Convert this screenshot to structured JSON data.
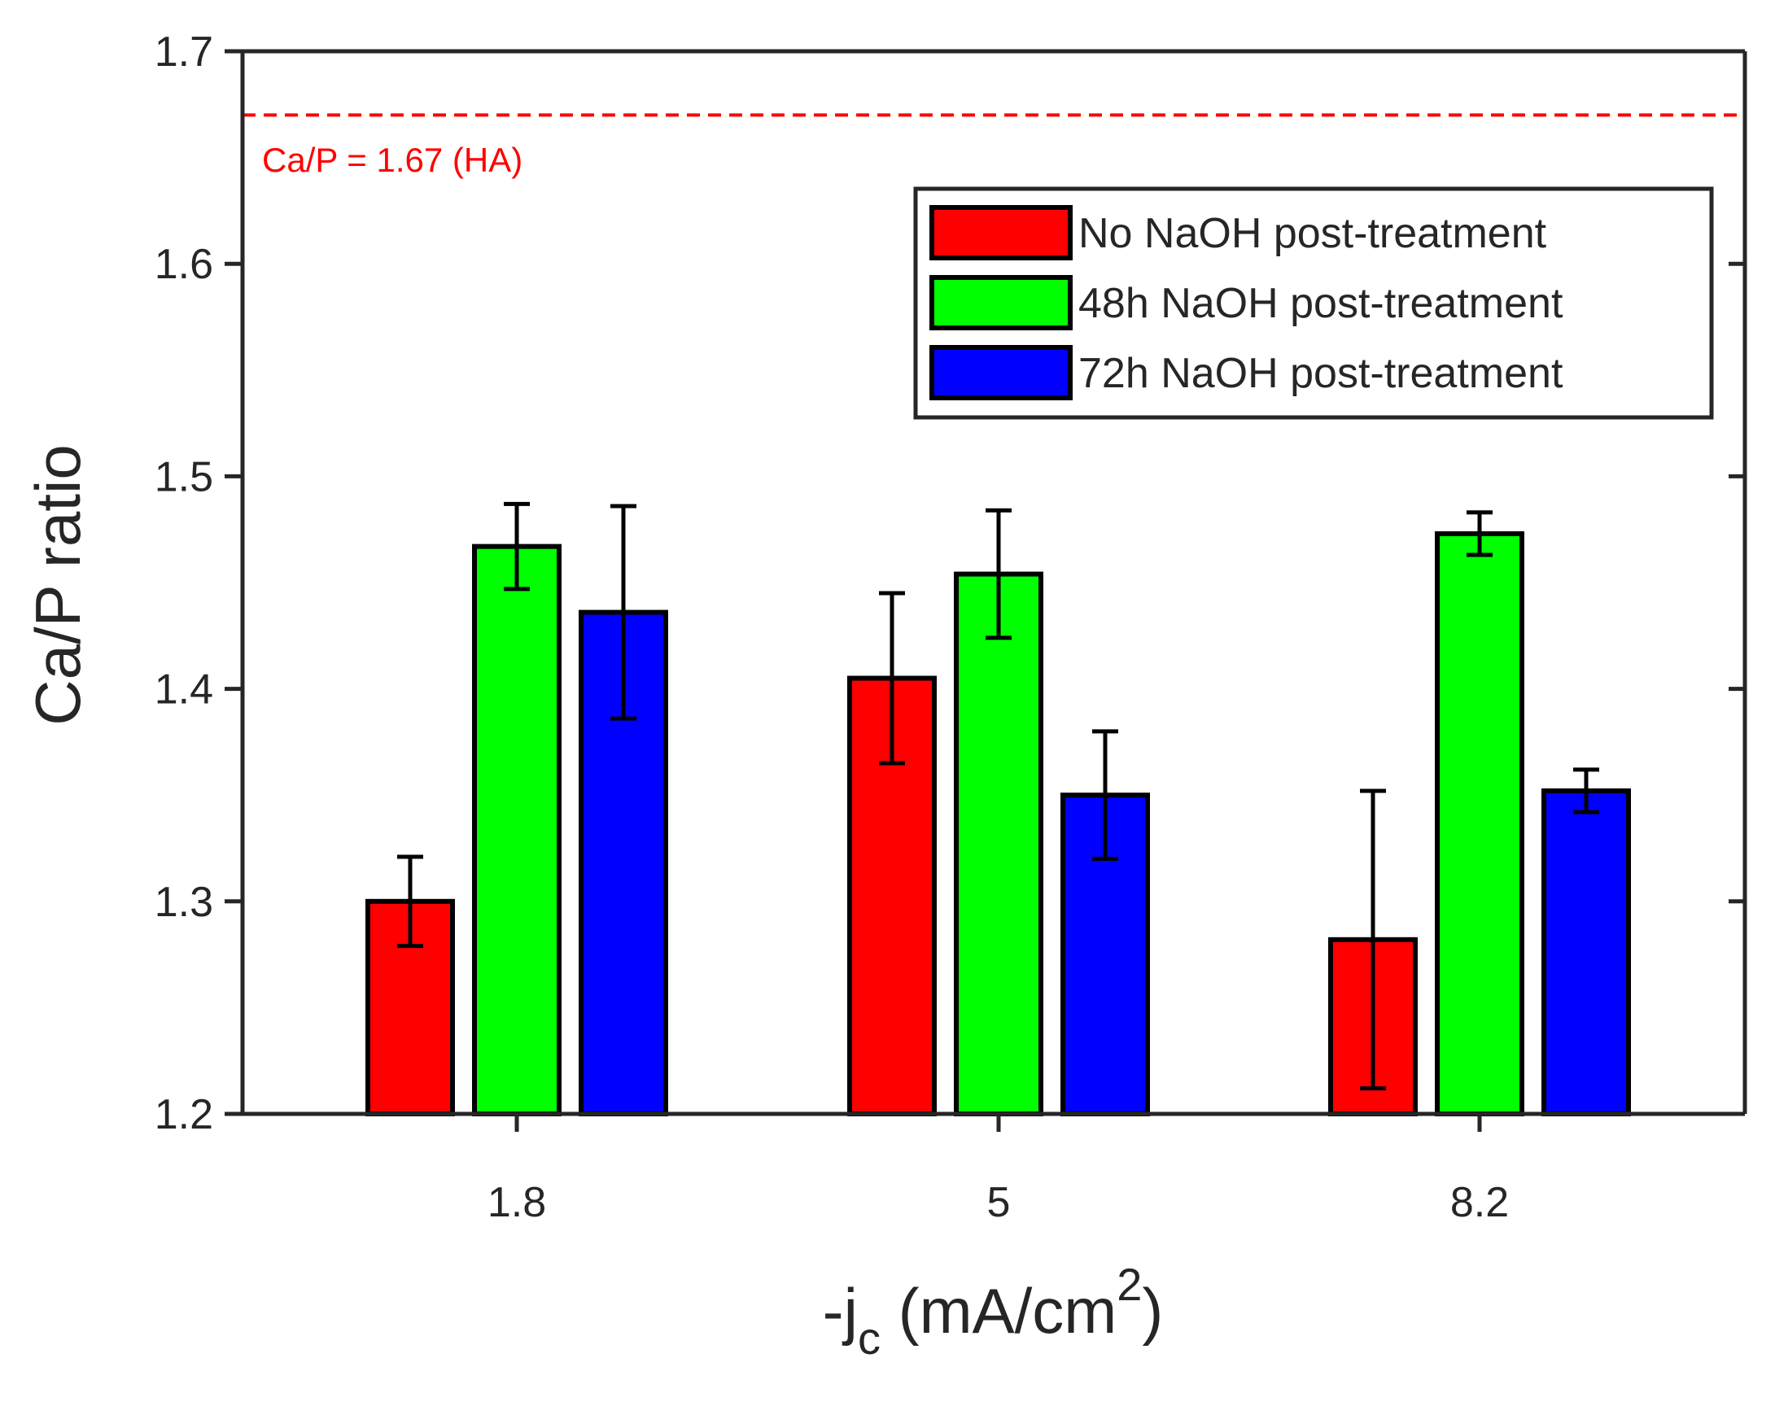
{
  "chart_data": {
    "type": "bar",
    "title": "",
    "categories": [
      "1.8",
      "5",
      "8.2"
    ],
    "xlabel": {
      "base": "-j",
      "subscript": "c",
      "unit_open": " (mA/cm",
      "superscript": "2",
      "unit_close": ")"
    },
    "ylabel": "Ca/P ratio",
    "ylim": [
      1.2,
      1.7
    ],
    "yticks": [
      1.2,
      1.3,
      1.4,
      1.5,
      1.6,
      1.7
    ],
    "ytick_labels": [
      "1.2",
      "1.3",
      "1.4",
      "1.5",
      "1.6",
      "1.7"
    ],
    "grid": false,
    "legend_position": "top-right",
    "series": [
      {
        "name": "No NaOH post-treatment",
        "color": "#ff0000",
        "values": [
          1.3,
          1.405,
          1.282
        ],
        "errors": [
          0.021,
          0.04,
          0.07
        ]
      },
      {
        "name": "48h NaOH post-treatment",
        "color": "#00ff00",
        "values": [
          1.467,
          1.454,
          1.473
        ],
        "errors": [
          0.02,
          0.03,
          0.01
        ]
      },
      {
        "name": "72h NaOH post-treatment",
        "color": "#0000ff",
        "values": [
          1.436,
          1.35,
          1.352
        ],
        "errors": [
          0.05,
          0.03,
          0.01
        ]
      }
    ],
    "reference_line": {
      "value": 1.67,
      "label": "Ca/P = 1.67 (HA)",
      "color": "#ff0000",
      "style": "dashed"
    }
  }
}
